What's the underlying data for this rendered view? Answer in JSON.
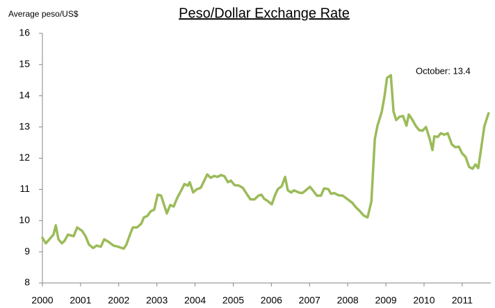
{
  "chart_data": {
    "type": "line",
    "title": "Peso/Dollar Exchange Rate",
    "y_label": "Average peso/US$",
    "annotation": "October: 13.4",
    "color": "#9bbb59",
    "xlim": [
      2000,
      2011.75
    ],
    "xticks": [
      2000,
      2001,
      2002,
      2003,
      2004,
      2005,
      2006,
      2007,
      2008,
      2009,
      2010,
      2011
    ],
    "ylim": [
      8,
      16
    ],
    "yticks": [
      8,
      9,
      10,
      11,
      12,
      13,
      14,
      15,
      16
    ],
    "grid": false,
    "x": [
      2000.0,
      2000.09,
      2000.29,
      2000.35,
      2000.42,
      2000.51,
      2000.58,
      2000.67,
      2000.82,
      2000.91,
      2001.04,
      2001.13,
      2001.22,
      2001.33,
      2001.42,
      2001.53,
      2001.62,
      2001.73,
      2001.86,
      2001.99,
      2002.13,
      2002.2,
      2002.31,
      2002.37,
      2002.48,
      2002.59,
      2002.66,
      2002.75,
      2002.84,
      2002.93,
      2003.02,
      2003.11,
      2003.26,
      2003.35,
      2003.44,
      2003.53,
      2003.64,
      2003.72,
      2003.81,
      2003.86,
      2003.95,
      2004.04,
      2004.15,
      2004.24,
      2004.32,
      2004.41,
      2004.5,
      2004.59,
      2004.68,
      2004.77,
      2004.86,
      2004.94,
      2005.03,
      2005.15,
      2005.25,
      2005.34,
      2005.45,
      2005.56,
      2005.66,
      2005.74,
      2005.81,
      2005.9,
      2006.01,
      2006.1,
      2006.17,
      2006.27,
      2006.36,
      2006.43,
      2006.52,
      2006.59,
      2006.72,
      2006.81,
      2006.9,
      2007.01,
      2007.1,
      2007.19,
      2007.3,
      2007.38,
      2007.49,
      2007.56,
      2007.65,
      2007.76,
      2007.87,
      2008.0,
      2008.12,
      2008.21,
      2008.32,
      2008.42,
      2008.52,
      2008.62,
      2008.71,
      2008.78,
      2008.89,
      2008.96,
      2009.03,
      2009.13,
      2009.2,
      2009.27,
      2009.36,
      2009.45,
      2009.54,
      2009.6,
      2009.69,
      2009.78,
      2009.87,
      2009.96,
      2010.05,
      2010.15,
      2010.22,
      2010.27,
      2010.36,
      2010.44,
      2010.53,
      2010.62,
      2010.73,
      2010.82,
      2010.91,
      2011.0,
      2011.09,
      2011.18,
      2011.27,
      2011.35,
      2011.42,
      2011.49,
      2011.58,
      2011.69
    ],
    "values": [
      9.45,
      9.27,
      9.55,
      9.85,
      9.4,
      9.27,
      9.35,
      9.55,
      9.5,
      9.78,
      9.67,
      9.5,
      9.23,
      9.12,
      9.2,
      9.16,
      9.4,
      9.32,
      9.2,
      9.16,
      9.1,
      9.23,
      9.6,
      9.78,
      9.78,
      9.9,
      10.1,
      10.15,
      10.3,
      10.35,
      10.83,
      10.8,
      10.23,
      10.5,
      10.45,
      10.72,
      10.97,
      11.17,
      11.12,
      11.23,
      10.9,
      11.0,
      11.05,
      11.28,
      11.48,
      11.37,
      11.43,
      11.4,
      11.46,
      11.42,
      11.23,
      11.28,
      11.14,
      11.12,
      11.05,
      10.88,
      10.68,
      10.68,
      10.8,
      10.83,
      10.7,
      10.63,
      10.52,
      10.83,
      11.01,
      11.1,
      11.4,
      10.97,
      10.9,
      10.97,
      10.9,
      10.88,
      10.97,
      11.08,
      10.95,
      10.8,
      10.8,
      11.03,
      11.01,
      10.86,
      10.88,
      10.81,
      10.8,
      10.68,
      10.57,
      10.43,
      10.3,
      10.16,
      10.1,
      10.61,
      12.61,
      13.04,
      13.48,
      13.95,
      14.57,
      14.66,
      13.5,
      13.22,
      13.33,
      13.35,
      13.04,
      13.4,
      13.24,
      13.04,
      12.9,
      12.88,
      13.0,
      12.61,
      12.26,
      12.7,
      12.68,
      12.8,
      12.75,
      12.8,
      12.44,
      12.35,
      12.37,
      12.15,
      12.04,
      11.72,
      11.66,
      11.8,
      11.68,
      12.26,
      13.02,
      13.44
    ]
  }
}
